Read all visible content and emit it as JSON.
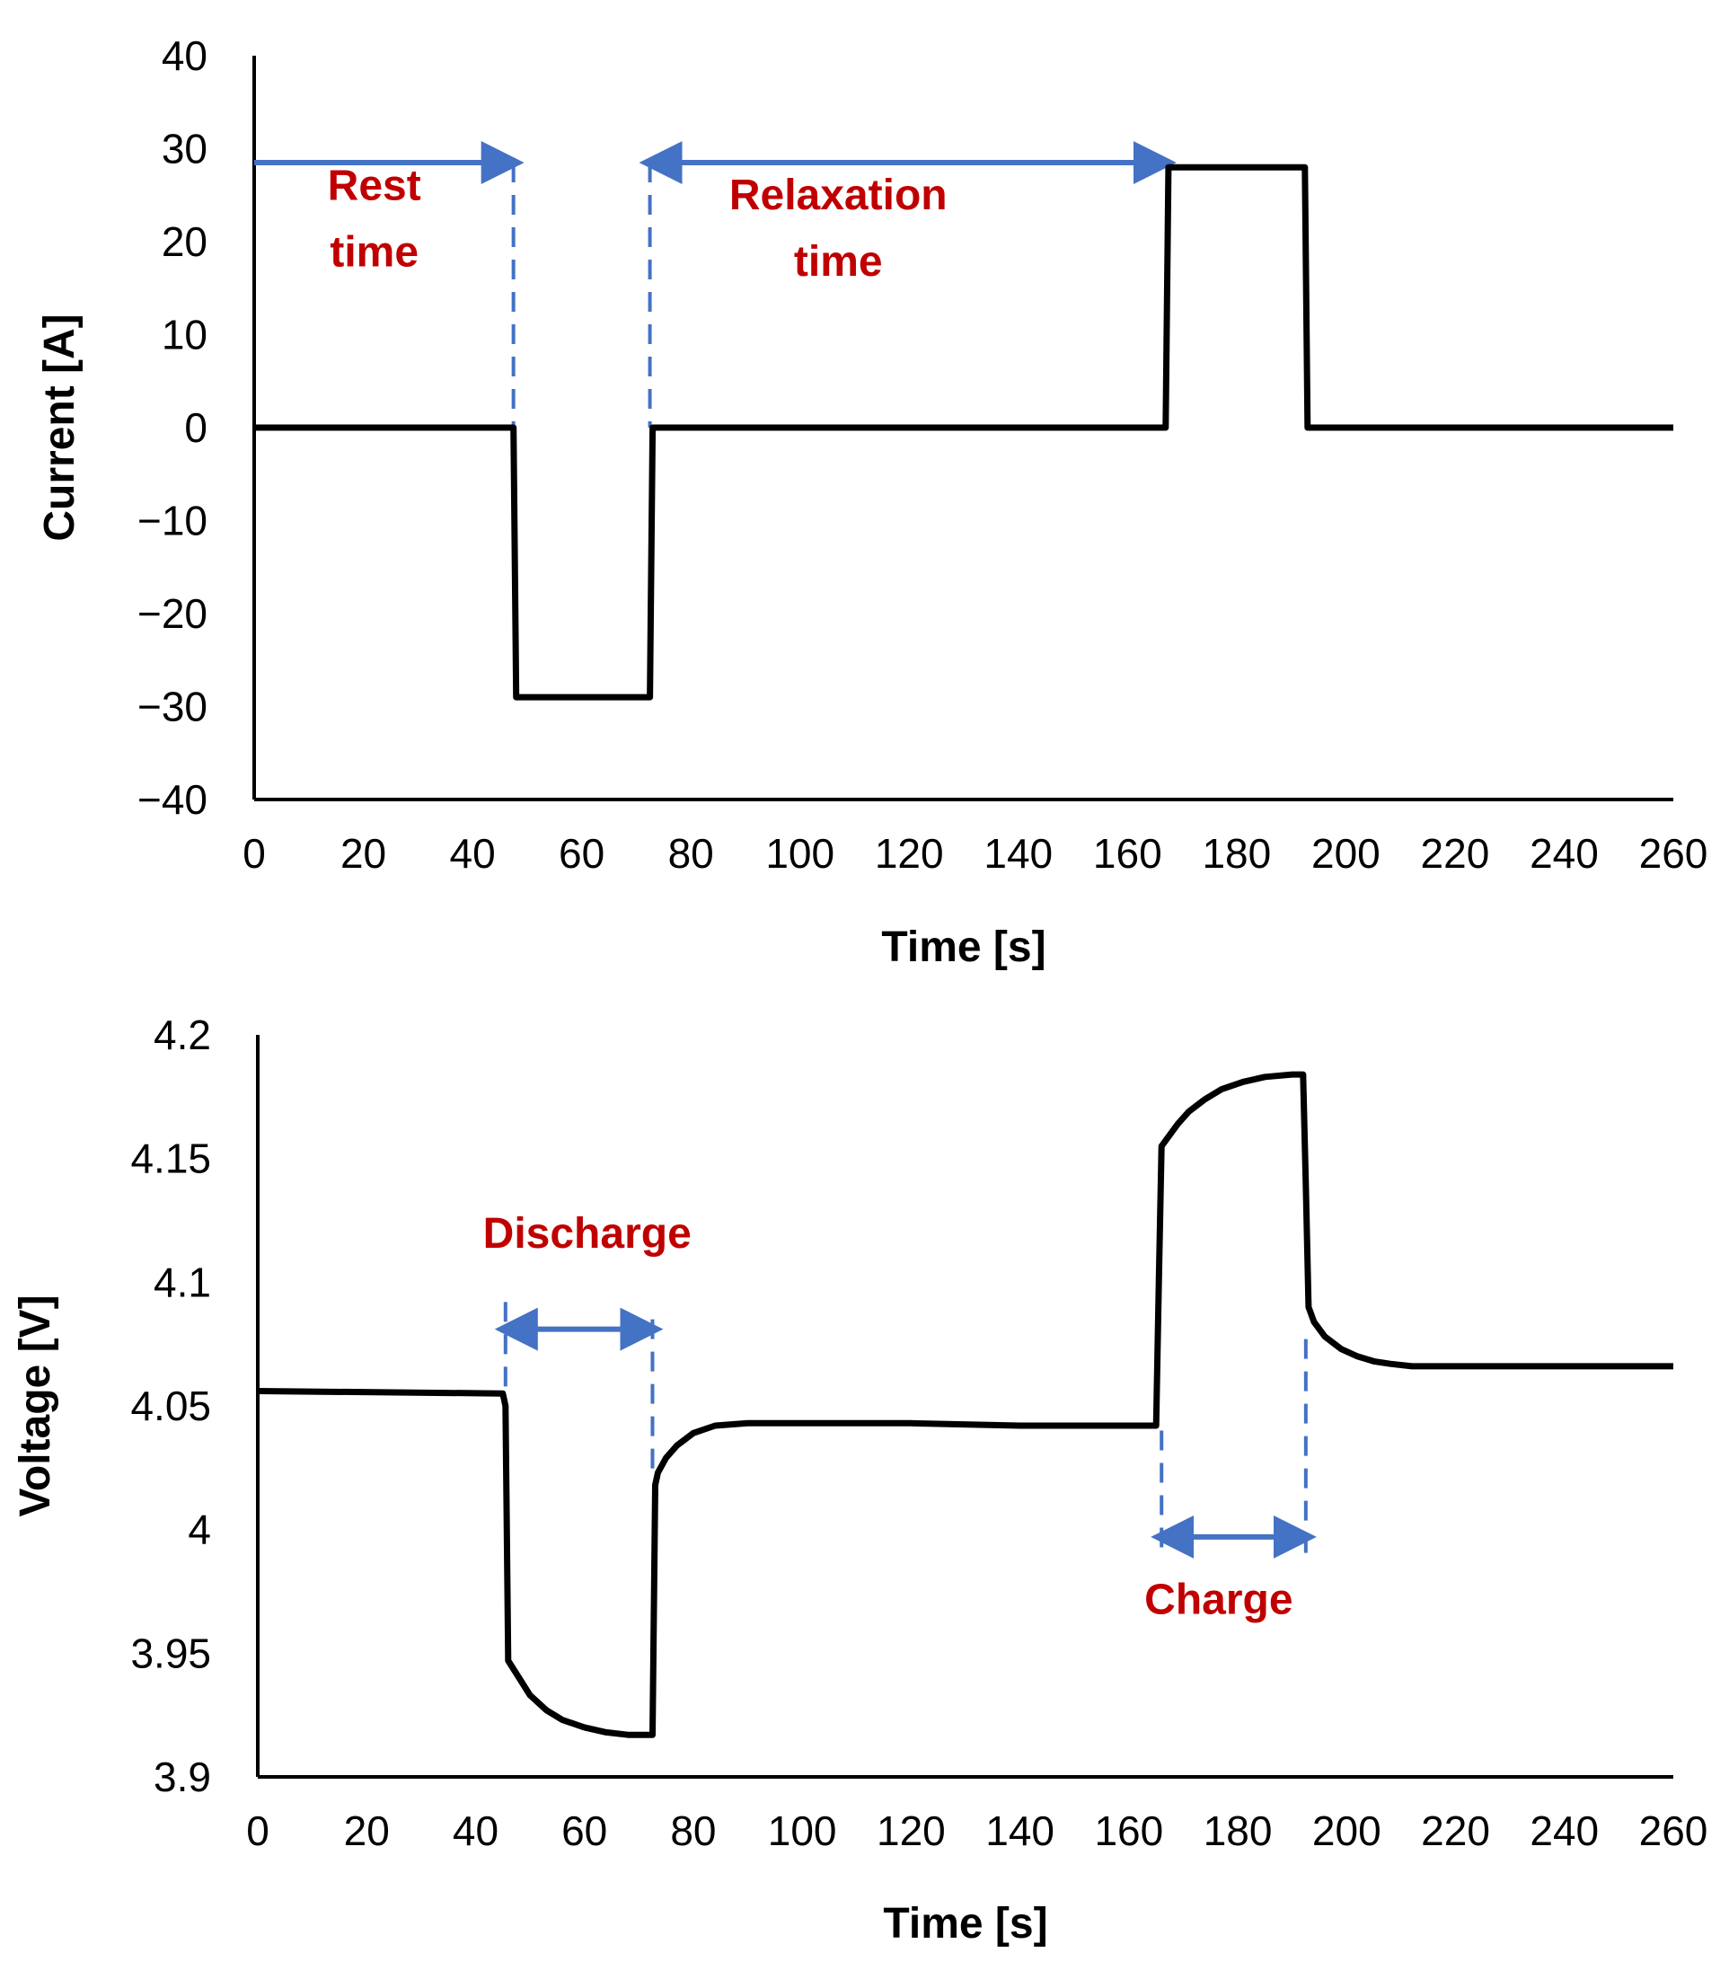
{
  "colors": {
    "series": "#000000",
    "annotation_text": "#C00000",
    "arrow": "#4472C4"
  },
  "chart_data": [
    {
      "type": "line",
      "name": "current-chart",
      "title": "",
      "xlabel": "Time [s]",
      "ylabel": "Current [A]",
      "xlim": [
        0,
        260
      ],
      "ylim": [
        -40,
        40
      ],
      "xticks": [
        0,
        20,
        40,
        60,
        80,
        100,
        120,
        140,
        160,
        180,
        200,
        220,
        240,
        260
      ],
      "yticks": [
        40,
        30,
        20,
        10,
        0,
        -10,
        -20,
        -30,
        -40
      ],
      "ytick_labels": [
        "40",
        "30",
        "20",
        "10",
        "0",
        "−10",
        "−20",
        "−30",
        "−40"
      ],
      "grid": false,
      "series": [
        {
          "name": "Current",
          "x": [
            0,
            47.5,
            48,
            72.5,
            73,
            167,
            167.5,
            192.5,
            193,
            260
          ],
          "y": [
            0,
            0,
            -29,
            -29,
            0,
            0,
            28,
            28,
            0,
            0
          ]
        }
      ],
      "annotations": [
        {
          "kind": "text",
          "lines": [
            "Rest",
            "time"
          ],
          "x": 22,
          "y": 24.5
        },
        {
          "kind": "text",
          "lines": [
            "Relaxation",
            "time"
          ],
          "x": 107,
          "y": 23.5
        },
        {
          "kind": "arrow",
          "from": [
            0,
            28.5
          ],
          "to": [
            47.5,
            28.5
          ],
          "heads": "end"
        },
        {
          "kind": "arrow",
          "from": [
            72.5,
            28.5
          ],
          "to": [
            167,
            28.5
          ],
          "heads": "both"
        },
        {
          "kind": "vline",
          "x": 47.5,
          "y1": 28.5,
          "y2": 0
        },
        {
          "kind": "vline",
          "x": 72.5,
          "y1": 28.5,
          "y2": 0
        }
      ]
    },
    {
      "type": "line",
      "name": "voltage-chart",
      "title": "",
      "xlabel": "Time [s]",
      "ylabel": "Voltage [V]",
      "xlim": [
        0,
        260
      ],
      "ylim": [
        3.9,
        4.2
      ],
      "xticks": [
        0,
        20,
        40,
        60,
        80,
        100,
        120,
        140,
        160,
        180,
        200,
        220,
        240,
        260
      ],
      "yticks": [
        4.2,
        4.15,
        4.1,
        4.05,
        4,
        3.95,
        3.9
      ],
      "ytick_labels": [
        "4.2",
        "4.15",
        "4.1",
        "4.05",
        "4",
        "3.95",
        "3.9"
      ],
      "grid": false,
      "series": [
        {
          "name": "Voltage",
          "x": [
            0,
            45,
            45.5,
            46,
            48,
            50,
            53,
            56,
            60,
            64,
            68,
            71,
            72.5,
            73,
            73.5,
            75,
            77,
            80,
            84,
            90,
            100,
            120,
            140,
            160,
            165,
            165.5,
            166,
            167,
            169,
            171,
            174,
            177,
            181,
            185,
            190,
            192,
            192.5,
            193,
            194,
            196,
            199,
            202,
            205,
            208,
            212,
            220,
            240,
            260
          ],
          "y": [
            4.056,
            4.055,
            4.05,
            3.947,
            3.94,
            3.933,
            3.927,
            3.923,
            3.92,
            3.918,
            3.917,
            3.917,
            3.917,
            4.018,
            4.023,
            4.029,
            4.034,
            4.039,
            4.042,
            4.043,
            4.043,
            4.043,
            4.042,
            4.042,
            4.042,
            4.1,
            4.155,
            4.158,
            4.164,
            4.169,
            4.174,
            4.178,
            4.181,
            4.183,
            4.184,
            4.184,
            4.14,
            4.09,
            4.084,
            4.078,
            4.073,
            4.07,
            4.068,
            4.067,
            4.066,
            4.066,
            4.066,
            4.066
          ]
        }
      ],
      "annotations": [
        {
          "kind": "text",
          "lines": [
            "Discharge"
          ],
          "x": 60.5,
          "y": 4.114
        },
        {
          "kind": "text",
          "lines": [
            "Charge"
          ],
          "x": 176.5,
          "y": 3.966
        },
        {
          "kind": "arrow",
          "from": [
            45.5,
            4.081
          ],
          "to": [
            72.5,
            4.081
          ],
          "heads": "both"
        },
        {
          "kind": "arrow",
          "from": [
            166,
            3.997
          ],
          "to": [
            192.5,
            3.997
          ],
          "heads": "both"
        },
        {
          "kind": "vline",
          "x": 45.5,
          "y1": 4.092,
          "y2": 4.05
        },
        {
          "kind": "vline",
          "x": 72.5,
          "y1": 4.085,
          "y2": 4.023
        },
        {
          "kind": "vline",
          "x": 166,
          "y1": 4.04,
          "y2": 3.988
        },
        {
          "kind": "vline",
          "x": 192.5,
          "y1": 4.077,
          "y2": 3.988
        }
      ]
    }
  ]
}
